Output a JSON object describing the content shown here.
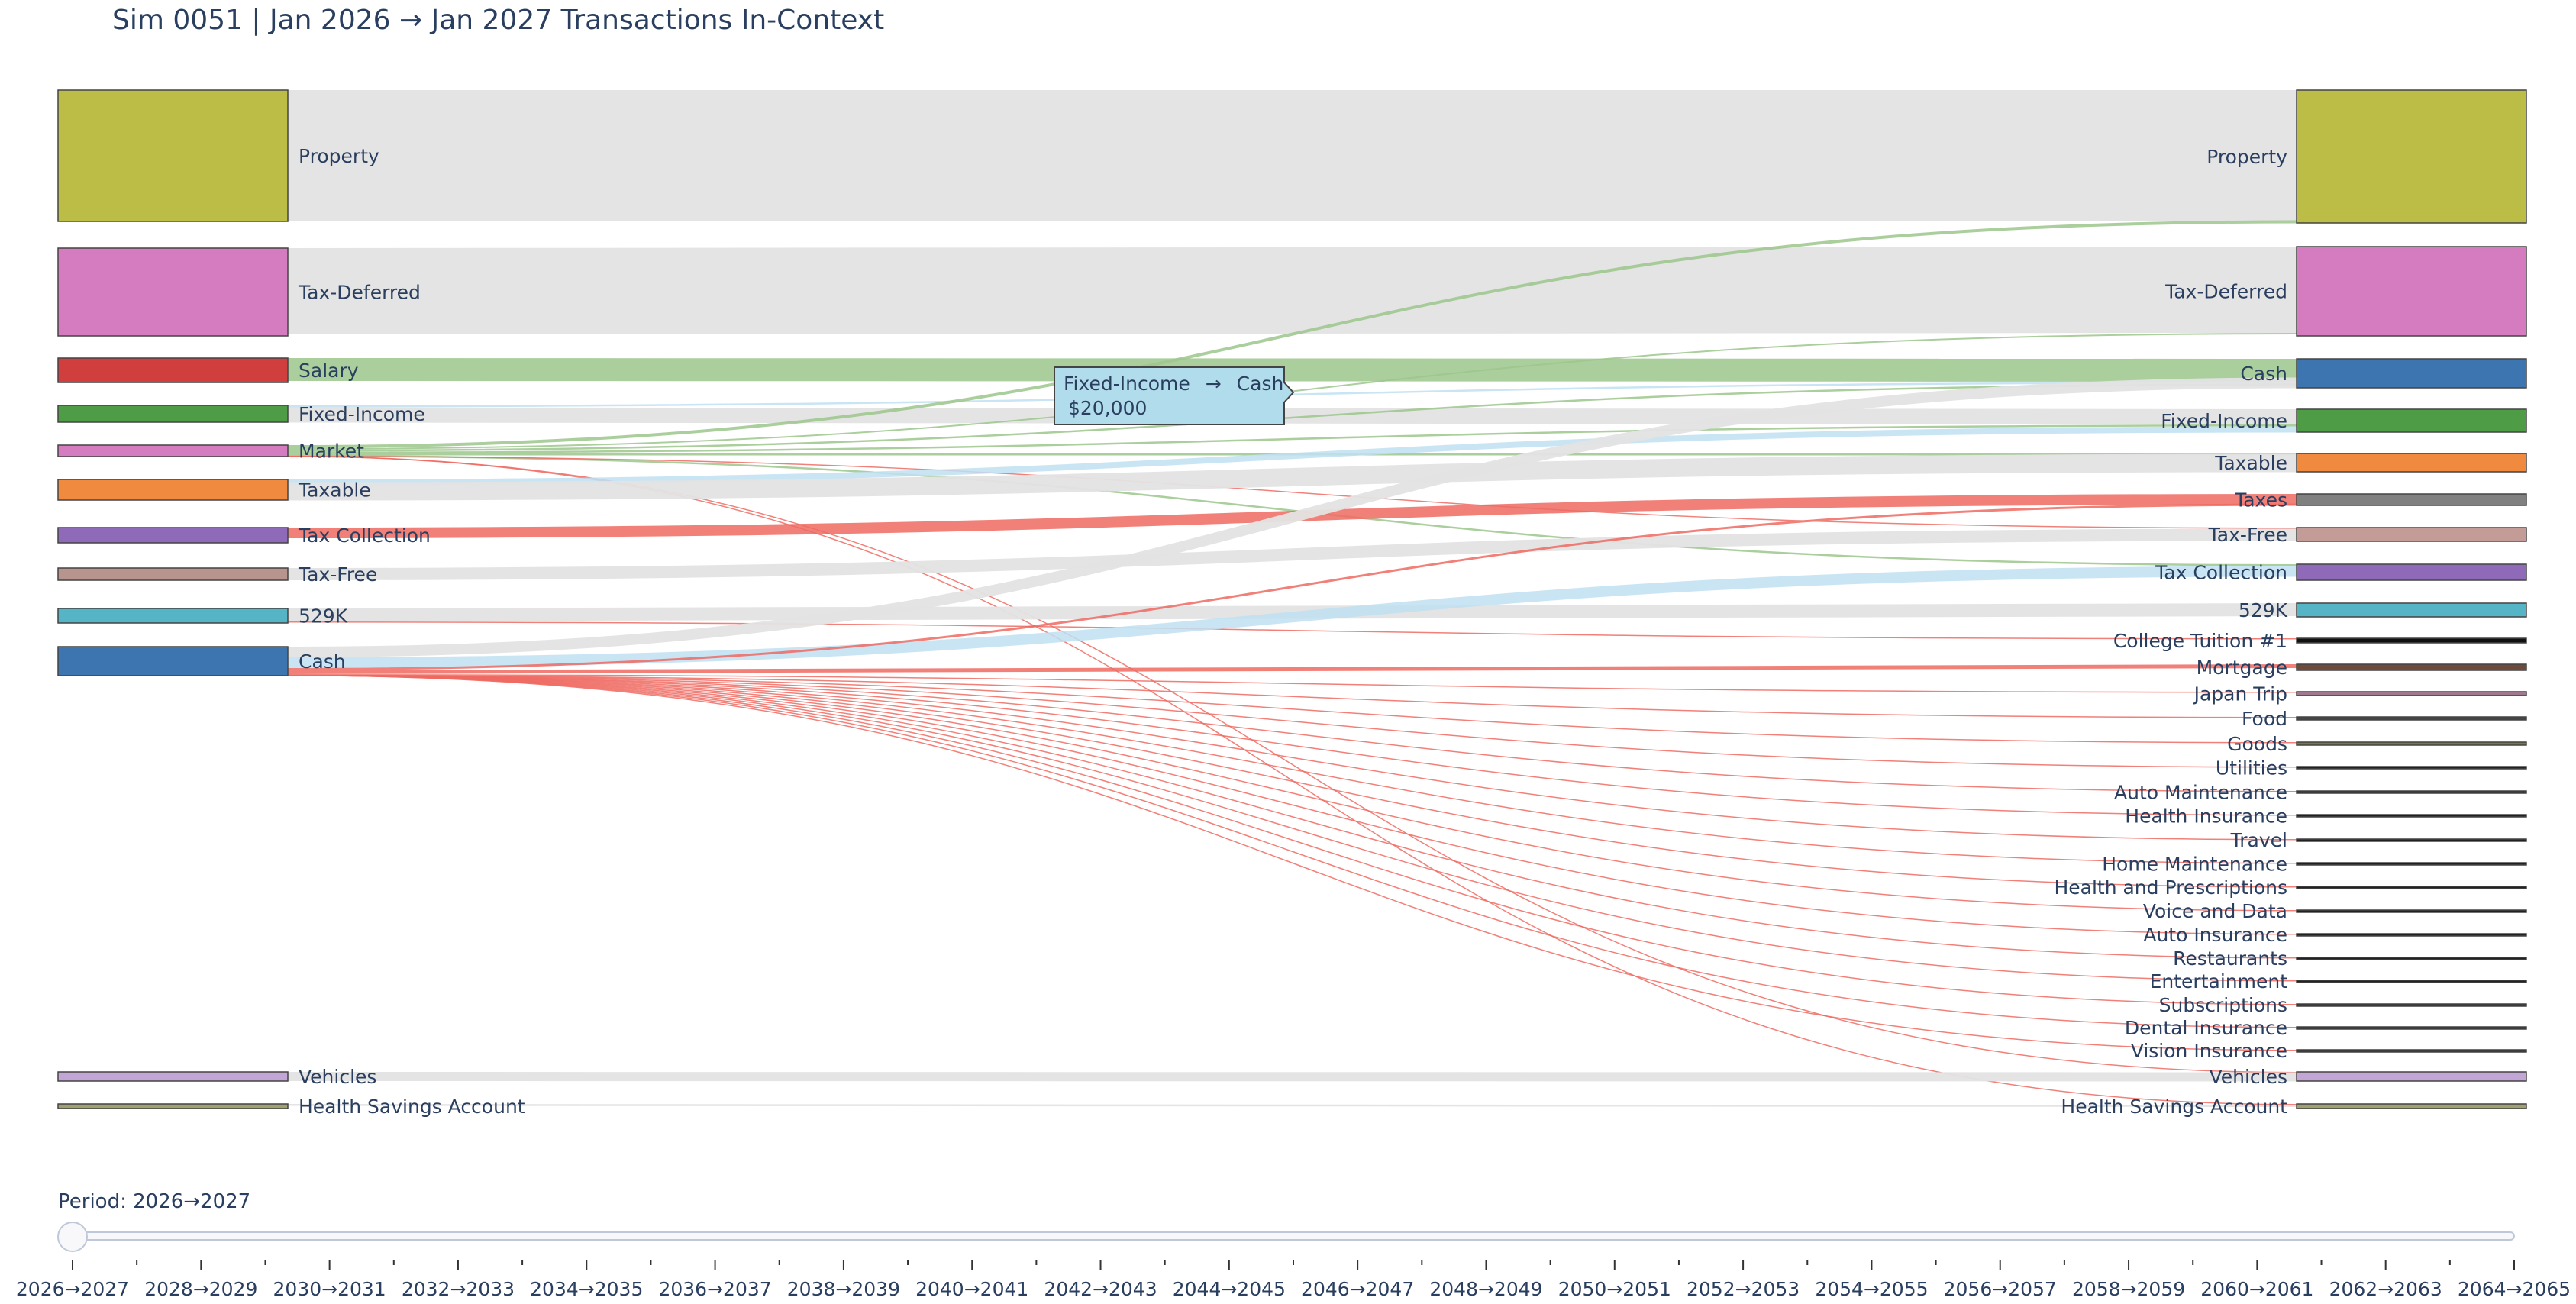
{
  "chart_data": {
    "type": "sankey",
    "title": "Sim 0051 | Jan 2026 → Jan 2027 Transactions In-Context",
    "source_nodes": [
      {
        "name": "Property",
        "color": "#bcbd46"
      },
      {
        "name": "Tax-Deferred",
        "color": "#d57bbf"
      },
      {
        "name": "Salary",
        "color": "#d03e3e"
      },
      {
        "name": "Fixed-Income",
        "color": "#4e9c45"
      },
      {
        "name": "Market",
        "color": "#d57bbf"
      },
      {
        "name": "Taxable",
        "color": "#f08a3e"
      },
      {
        "name": "Tax Collection",
        "color": "#8f6ab8"
      },
      {
        "name": "Tax-Free",
        "color": "#b8948e"
      },
      {
        "name": "529K",
        "color": "#56b4c7"
      },
      {
        "name": "Cash",
        "color": "#3c75b0"
      },
      {
        "name": "Vehicles",
        "color": "#c2a6d6"
      },
      {
        "name": "Health Savings Account",
        "color": "#a0a070"
      }
    ],
    "target_nodes": [
      {
        "name": "Property",
        "color": "#bcbd46"
      },
      {
        "name": "Tax-Deferred",
        "color": "#d57bbf"
      },
      {
        "name": "Cash",
        "color": "#3c75b0"
      },
      {
        "name": "Fixed-Income",
        "color": "#4e9c45"
      },
      {
        "name": "Taxable",
        "color": "#f08a3e"
      },
      {
        "name": "Taxes",
        "color": "#808080"
      },
      {
        "name": "Tax-Free",
        "color": "#c49c97"
      },
      {
        "name": "Tax Collection",
        "color": "#8f6ab8"
      },
      {
        "name": "529K",
        "color": "#56b4c7"
      },
      {
        "name": "College Tuition #1",
        "color": "#111111"
      },
      {
        "name": "Mortgage",
        "color": "#6e4a3a"
      },
      {
        "name": "Japan Trip",
        "color": "#a07890"
      },
      {
        "name": "Food",
        "color": "#444444"
      },
      {
        "name": "Goods",
        "color": "#7a7a40"
      },
      {
        "name": "Utilities",
        "color": "#222222"
      },
      {
        "name": "Auto Maintenance",
        "color": "#222222"
      },
      {
        "name": "Health Insurance",
        "color": "#222222"
      },
      {
        "name": "Travel",
        "color": "#222222"
      },
      {
        "name": "Home Maintenance",
        "color": "#222222"
      },
      {
        "name": "Health and Prescriptions",
        "color": "#222222"
      },
      {
        "name": "Voice and Data",
        "color": "#222222"
      },
      {
        "name": "Auto Insurance",
        "color": "#222222"
      },
      {
        "name": "Restaurants",
        "color": "#222222"
      },
      {
        "name": "Entertainment",
        "color": "#222222"
      },
      {
        "name": "Subscriptions",
        "color": "#222222"
      },
      {
        "name": "Dental Insurance",
        "color": "#222222"
      },
      {
        "name": "Vision Insurance",
        "color": "#222222"
      },
      {
        "name": "Vehicles",
        "color": "#c2a6d6"
      },
      {
        "name": "Health Savings Account",
        "color": "#a0a070"
      }
    ],
    "links": [
      {
        "source": "Property",
        "target": "Property",
        "kind": "balance"
      },
      {
        "source": "Tax-Deferred",
        "target": "Tax-Deferred",
        "kind": "balance"
      },
      {
        "source": "Salary",
        "target": "Cash",
        "kind": "income"
      },
      {
        "source": "Fixed-Income",
        "target": "Cash",
        "kind": "transfer",
        "value": 20000
      },
      {
        "source": "Fixed-Income",
        "target": "Fixed-Income",
        "kind": "balance"
      },
      {
        "source": "Market",
        "target": "Property",
        "kind": "income"
      },
      {
        "source": "Market",
        "target": "Tax-Deferred",
        "kind": "income"
      },
      {
        "source": "Market",
        "target": "Cash",
        "kind": "income"
      },
      {
        "source": "Market",
        "target": "Fixed-Income",
        "kind": "income"
      },
      {
        "source": "Market",
        "target": "Taxable",
        "kind": "income"
      },
      {
        "source": "Market",
        "target": "Tax Collection",
        "kind": "income"
      },
      {
        "source": "Market",
        "target": "Tax-Free",
        "kind": "expense"
      },
      {
        "source": "Market",
        "target": "Vehicles",
        "kind": "expense"
      },
      {
        "source": "Market",
        "target": "Health Savings Account",
        "kind": "expense"
      },
      {
        "source": "Taxable",
        "target": "Fixed-Income",
        "kind": "transfer"
      },
      {
        "source": "Taxable",
        "target": "Taxable",
        "kind": "balance"
      },
      {
        "source": "Tax Collection",
        "target": "Taxes",
        "kind": "expense"
      },
      {
        "source": "Tax-Free",
        "target": "Tax-Free",
        "kind": "balance"
      },
      {
        "source": "529K",
        "target": "529K",
        "kind": "balance"
      },
      {
        "source": "529K",
        "target": "College Tuition #1",
        "kind": "expense"
      },
      {
        "source": "Cash",
        "target": "Cash",
        "kind": "balance"
      },
      {
        "source": "Cash",
        "target": "Tax Collection",
        "kind": "transfer"
      },
      {
        "source": "Cash",
        "target": "Taxes",
        "kind": "expense"
      },
      {
        "source": "Cash",
        "target": "Mortgage",
        "kind": "expense"
      },
      {
        "source": "Cash",
        "target": "Japan Trip",
        "kind": "expense"
      },
      {
        "source": "Cash",
        "target": "Food",
        "kind": "expense"
      },
      {
        "source": "Cash",
        "target": "Goods",
        "kind": "expense"
      },
      {
        "source": "Cash",
        "target": "Utilities",
        "kind": "expense"
      },
      {
        "source": "Cash",
        "target": "Auto Maintenance",
        "kind": "expense"
      },
      {
        "source": "Cash",
        "target": "Health Insurance",
        "kind": "expense"
      },
      {
        "source": "Cash",
        "target": "Travel",
        "kind": "expense"
      },
      {
        "source": "Cash",
        "target": "Home Maintenance",
        "kind": "expense"
      },
      {
        "source": "Cash",
        "target": "Health and Prescriptions",
        "kind": "expense"
      },
      {
        "source": "Cash",
        "target": "Voice and Data",
        "kind": "expense"
      },
      {
        "source": "Cash",
        "target": "Auto Insurance",
        "kind": "expense"
      },
      {
        "source": "Cash",
        "target": "Restaurants",
        "kind": "expense"
      },
      {
        "source": "Cash",
        "target": "Entertainment",
        "kind": "expense"
      },
      {
        "source": "Cash",
        "target": "Subscriptions",
        "kind": "expense"
      },
      {
        "source": "Cash",
        "target": "Dental Insurance",
        "kind": "expense"
      },
      {
        "source": "Cash",
        "target": "Vision Insurance",
        "kind": "expense"
      },
      {
        "source": "Vehicles",
        "target": "Vehicles",
        "kind": "balance"
      },
      {
        "source": "Health Savings Account",
        "target": "Health Savings Account",
        "kind": "balance"
      }
    ],
    "link_colors": {
      "balance": "#e3e3e3",
      "income": "#9cc58c",
      "transfer": "#bfe0f2",
      "expense": "#ef6a62"
    },
    "hover": {
      "source": "Fixed-Income",
      "arrow": "→",
      "target": "Cash",
      "value": "$20,000"
    },
    "slider": {
      "label": "Period: 2026→2027",
      "current_index": 0,
      "periods": [
        "2026→2027",
        "2028→2029",
        "2030→2031",
        "2032→2033",
        "2034→2035",
        "2036→2037",
        "2038→2039",
        "2040→2041",
        "2042→2043",
        "2044→2045",
        "2046→2047",
        "2048→2049",
        "2050→2051",
        "2052→2053",
        "2054→2055",
        "2056→2057",
        "2058→2059",
        "2060→2061",
        "2062→2063",
        "2064→2065"
      ]
    }
  }
}
